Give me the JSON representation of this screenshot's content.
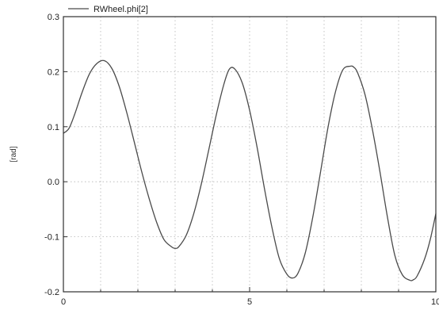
{
  "chart_data": {
    "type": "line",
    "title": "",
    "xlabel": "",
    "ylabel": "[rad]",
    "xlim": [
      0,
      10
    ],
    "ylim": [
      -0.2,
      0.3
    ],
    "xticks": [
      "0",
      "5",
      "10"
    ],
    "yticks": [
      "0.3",
      "0.2",
      "0.1",
      "0.0",
      "-0.1",
      "-0.2"
    ],
    "grid": true,
    "legend_position": "top-left",
    "series": [
      {
        "name": "RWheel.phi[2]",
        "color": "#4a4a4a",
        "x": [
          0,
          0.15,
          0.3,
          0.5,
          0.7,
          0.9,
          1.1,
          1.3,
          1.5,
          1.7,
          1.9,
          2.1,
          2.3,
          2.5,
          2.7,
          2.9,
          3.0,
          3.1,
          3.3,
          3.5,
          3.7,
          3.9,
          4.1,
          4.3,
          4.45,
          4.6,
          4.8,
          5.0,
          5.2,
          5.4,
          5.6,
          5.8,
          6.0,
          6.15,
          6.3,
          6.5,
          6.7,
          6.9,
          7.1,
          7.3,
          7.5,
          7.7,
          7.8,
          7.9,
          8.1,
          8.3,
          8.5,
          8.7,
          8.9,
          9.1,
          9.3,
          9.4,
          9.5,
          9.7,
          9.85,
          10.0
        ],
        "y": [
          0.088,
          0.097,
          0.122,
          0.162,
          0.196,
          0.215,
          0.22,
          0.206,
          0.173,
          0.126,
          0.073,
          0.019,
          -0.03,
          -0.073,
          -0.105,
          -0.118,
          -0.121,
          -0.118,
          -0.097,
          -0.058,
          -0.005,
          0.057,
          0.12,
          0.175,
          0.204,
          0.205,
          0.18,
          0.13,
          0.063,
          -0.013,
          -0.083,
          -0.14,
          -0.168,
          -0.175,
          -0.166,
          -0.128,
          -0.063,
          0.016,
          0.097,
          0.162,
          0.203,
          0.21,
          0.208,
          0.198,
          0.158,
          0.094,
          0.018,
          -0.064,
          -0.134,
          -0.169,
          -0.179,
          -0.178,
          -0.171,
          -0.14,
          -0.105,
          -0.058
        ]
      }
    ]
  }
}
